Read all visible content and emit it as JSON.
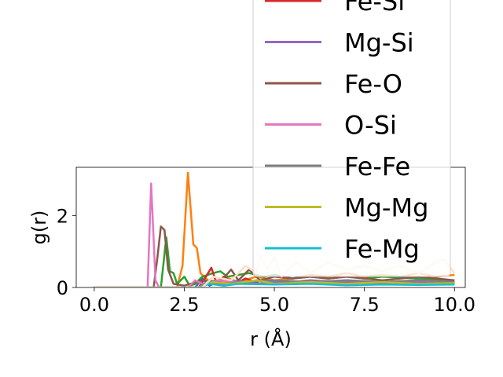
{
  "chart_data": {
    "type": "line",
    "xlabel": "r (Å)",
    "ylabel": "g(r)",
    "xlim": [
      -0.5,
      10.3
    ],
    "ylim": [
      0,
      3.35
    ],
    "xticks": [
      0.0,
      2.5,
      5.0,
      7.5,
      10.0
    ],
    "xtick_labels": [
      "0.0",
      "2.5",
      "5.0",
      "7.5",
      "10.0"
    ],
    "yticks": [
      0,
      2
    ],
    "ytick_labels": [
      "0",
      "2"
    ],
    "grid": false,
    "legend_position": "upper right (extends above the axes)",
    "legend_partial_entry": "Fe-Si",
    "series": [
      {
        "name": "",
        "color": "#1f77b4",
        "points": [
          [
            0,
            0
          ],
          [
            1.5,
            0
          ],
          [
            2.8,
            0
          ],
          [
            3.0,
            0.25
          ],
          [
            3.2,
            0.05
          ],
          [
            3.5,
            0.2
          ],
          [
            4.0,
            0.1
          ],
          [
            4.5,
            0.2
          ],
          [
            5.0,
            0.1
          ],
          [
            5.5,
            0.15
          ],
          [
            6.0,
            0.1
          ],
          [
            7.0,
            0.15
          ],
          [
            8.0,
            0.1
          ],
          [
            9.0,
            0.12
          ],
          [
            10.0,
            0.1
          ]
        ]
      },
      {
        "name": "",
        "color": "#ff7f0e",
        "points": [
          [
            0,
            0
          ],
          [
            2.3,
            0
          ],
          [
            2.45,
            0.6
          ],
          [
            2.6,
            3.2
          ],
          [
            2.75,
            1.2
          ],
          [
            2.85,
            1.1
          ],
          [
            2.95,
            0.4
          ],
          [
            3.1,
            0.25
          ],
          [
            3.3,
            0.1
          ],
          [
            3.6,
            0.3
          ],
          [
            4.0,
            0.15
          ],
          [
            4.5,
            0.3
          ],
          [
            5.0,
            0.2
          ],
          [
            5.5,
            0.25
          ],
          [
            6.0,
            0.35
          ],
          [
            6.5,
            0.3
          ],
          [
            7.0,
            0.4
          ],
          [
            7.5,
            0.3
          ],
          [
            8.0,
            0.35
          ],
          [
            8.5,
            0.3
          ],
          [
            9.0,
            0.4
          ],
          [
            9.5,
            0.3
          ],
          [
            10.0,
            0.35
          ]
        ]
      },
      {
        "name": "",
        "color": "#2ca02c",
        "points": [
          [
            0,
            0
          ],
          [
            1.85,
            0
          ],
          [
            2.0,
            1.4
          ],
          [
            2.1,
            0.45
          ],
          [
            2.2,
            0.4
          ],
          [
            2.3,
            0.1
          ],
          [
            2.5,
            0.3
          ],
          [
            2.65,
            0.05
          ],
          [
            2.8,
            0.1
          ],
          [
            3.0,
            0.3
          ],
          [
            3.3,
            0.4
          ],
          [
            3.5,
            0.45
          ],
          [
            3.7,
            0.3
          ],
          [
            4.0,
            0.35
          ],
          [
            4.3,
            0.4
          ],
          [
            4.7,
            0.3
          ],
          [
            5.0,
            0.35
          ],
          [
            5.5,
            0.25
          ],
          [
            6.0,
            0.3
          ],
          [
            6.5,
            0.25
          ],
          [
            7.0,
            0.3
          ],
          [
            7.5,
            0.25
          ],
          [
            8.0,
            0.3
          ],
          [
            9.0,
            0.25
          ],
          [
            10.0,
            0.2
          ]
        ]
      },
      {
        "name": "",
        "color": "#d62728",
        "points": [
          [
            0,
            0
          ],
          [
            2.9,
            0
          ],
          [
            3.1,
            0.3
          ],
          [
            3.25,
            0.55
          ],
          [
            3.4,
            0.1
          ],
          [
            3.6,
            0.3
          ],
          [
            3.9,
            0.1
          ],
          [
            4.2,
            0.25
          ],
          [
            4.6,
            0.1
          ],
          [
            5.0,
            0.2
          ],
          [
            5.5,
            0.15
          ],
          [
            6.0,
            0.2
          ],
          [
            6.5,
            0.15
          ],
          [
            7.0,
            0.2
          ],
          [
            8.0,
            0.15
          ],
          [
            9.0,
            0.2
          ],
          [
            10.0,
            0.15
          ]
        ]
      },
      {
        "name": "Mg-Si",
        "color": "#9467bd",
        "points": [
          [
            0,
            0
          ],
          [
            3.0,
            0
          ],
          [
            3.2,
            0.2
          ],
          [
            3.5,
            0.1
          ],
          [
            4.0,
            0.2
          ],
          [
            4.5,
            0.1
          ],
          [
            5.0,
            0.15
          ],
          [
            5.5,
            0.1
          ],
          [
            6.0,
            0.2
          ],
          [
            7.0,
            0.15
          ],
          [
            8.0,
            0.1
          ],
          [
            9.0,
            0.15
          ],
          [
            10.0,
            0.1
          ]
        ]
      },
      {
        "name": "Fe-O",
        "color": "#8c564b",
        "points": [
          [
            0,
            0
          ],
          [
            1.65,
            0
          ],
          [
            1.75,
            0.8
          ],
          [
            1.85,
            1.7
          ],
          [
            1.95,
            1.6
          ],
          [
            2.05,
            0.5
          ],
          [
            2.2,
            0.1
          ],
          [
            2.5,
            0.05
          ],
          [
            3.0,
            0.2
          ],
          [
            3.5,
            0.15
          ],
          [
            3.8,
            0.5
          ],
          [
            4.0,
            0.2
          ],
          [
            4.3,
            0.5
          ],
          [
            4.6,
            0.2
          ],
          [
            5.0,
            0.3
          ],
          [
            5.5,
            0.25
          ],
          [
            6.0,
            0.3
          ],
          [
            6.5,
            0.25
          ],
          [
            7.0,
            0.3
          ],
          [
            8.0,
            0.2
          ],
          [
            9.0,
            0.3
          ],
          [
            10.0,
            0.2
          ]
        ]
      },
      {
        "name": "O-Si",
        "color": "#e377c2",
        "points": [
          [
            0,
            0
          ],
          [
            1.48,
            0
          ],
          [
            1.58,
            2.9
          ],
          [
            1.7,
            0.2
          ],
          [
            1.8,
            0
          ],
          [
            2.6,
            0
          ],
          [
            2.8,
            0.2
          ],
          [
            3.0,
            0.1
          ],
          [
            3.4,
            0.2
          ],
          [
            4.0,
            0.15
          ],
          [
            5.0,
            0.2
          ],
          [
            6.0,
            0.15
          ],
          [
            7.0,
            0.2
          ],
          [
            8.0,
            0.15
          ],
          [
            9.0,
            0.2
          ],
          [
            10.0,
            0.15
          ]
        ]
      },
      {
        "name": "Fe-Fe",
        "color": "#7f7f7f",
        "points": [
          [
            0,
            0
          ],
          [
            2.9,
            0
          ],
          [
            3.2,
            0.2
          ],
          [
            3.6,
            0.1
          ],
          [
            4.0,
            0.15
          ],
          [
            5.0,
            0.2
          ],
          [
            6.0,
            0.15
          ],
          [
            7.0,
            0.2
          ],
          [
            8.0,
            0.15
          ],
          [
            9.0,
            0.2
          ],
          [
            10.0,
            0.15
          ]
        ]
      },
      {
        "name": "Mg-Mg",
        "color": "#bcbd22",
        "points": [
          [
            0,
            0
          ],
          [
            2.9,
            0
          ],
          [
            3.3,
            0.15
          ],
          [
            3.8,
            0.1
          ],
          [
            4.5,
            0.2
          ],
          [
            5.0,
            0.1
          ],
          [
            6.0,
            0.15
          ],
          [
            7.0,
            0.1
          ],
          [
            8.0,
            0.15
          ],
          [
            9.0,
            0.1
          ],
          [
            10.0,
            0.12
          ]
        ]
      },
      {
        "name": "Fe-Mg",
        "color": "#17becf",
        "points": [
          [
            0,
            0
          ],
          [
            2.9,
            0
          ],
          [
            3.2,
            0.1
          ],
          [
            3.6,
            0.05
          ],
          [
            4.0,
            0.1
          ],
          [
            5.0,
            0.08
          ],
          [
            6.0,
            0.1
          ],
          [
            7.0,
            0.06
          ],
          [
            8.0,
            0.08
          ],
          [
            9.0,
            0.07
          ],
          [
            10.0,
            0.08
          ]
        ]
      },
      {
        "name": "",
        "color": "#ffe0c8",
        "points": [
          [
            0,
            0
          ],
          [
            3.0,
            0
          ],
          [
            3.3,
            0.3
          ],
          [
            3.8,
            0.2
          ],
          [
            4.2,
            0.6
          ],
          [
            4.5,
            0.4
          ],
          [
            4.6,
            0.9
          ],
          [
            4.8,
            0.5
          ],
          [
            5.0,
            0.85
          ],
          [
            5.2,
            0.3
          ],
          [
            5.6,
            0.7
          ],
          [
            6.0,
            0.4
          ],
          [
            6.5,
            0.7
          ],
          [
            7.0,
            0.5
          ],
          [
            7.5,
            0.6
          ],
          [
            8.0,
            0.45
          ],
          [
            8.5,
            0.6
          ],
          [
            9.0,
            0.4
          ],
          [
            9.5,
            0.7
          ],
          [
            9.7,
            0.8
          ],
          [
            10.0,
            0.4
          ]
        ]
      }
    ]
  }
}
